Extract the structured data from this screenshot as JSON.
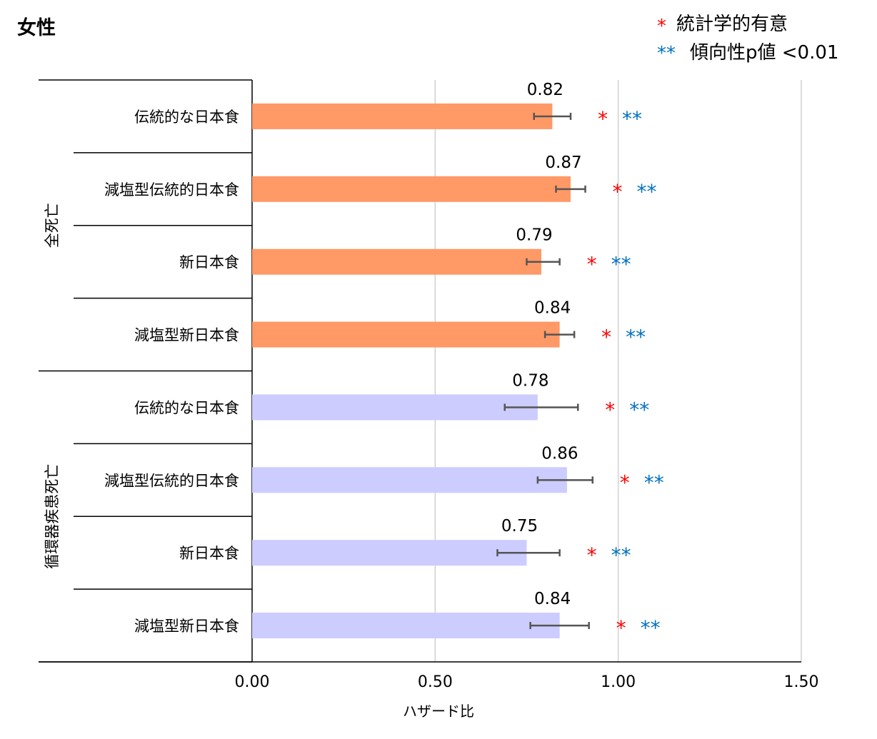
{
  "chart_data": {
    "type": "bar",
    "orientation": "horizontal",
    "title": "女性",
    "xlabel": "ハザード比",
    "xlim": [
      0,
      1.5
    ],
    "xticks": [
      "0.00",
      "0.50",
      "1.00",
      "1.50"
    ],
    "xtick_values": [
      0,
      0.5,
      1.0,
      1.5
    ],
    "grid": "vertical",
    "legend": {
      "placement": "top-right",
      "entries": [
        {
          "symbol": "*",
          "label": "統計学的有意",
          "color": "#FF0000"
        },
        {
          "symbol": "**",
          "label": "傾向性p値 <0.01",
          "color": "#0070C0"
        }
      ]
    },
    "groups": [
      {
        "name": "全死亡",
        "color": "#FF9966"
      },
      {
        "name": "循環器疾患死亡",
        "color": "#CCCCFF"
      }
    ],
    "rows": [
      {
        "group": 0,
        "label": "伝統的な日本食",
        "value": 0.82,
        "value_label": "0.82",
        "ci": [
          0.77,
          0.87
        ],
        "sig": "*",
        "trend": "**"
      },
      {
        "group": 0,
        "label": "減塩型伝統的日本食",
        "value": 0.87,
        "value_label": "0.87",
        "ci": [
          0.83,
          0.91
        ],
        "sig": "*",
        "trend": "**"
      },
      {
        "group": 0,
        "label": "新日本食",
        "value": 0.79,
        "value_label": "0.79",
        "ci": [
          0.75,
          0.84
        ],
        "sig": "*",
        "trend": "**"
      },
      {
        "group": 0,
        "label": "減塩型新日本食",
        "value": 0.84,
        "value_label": "0.84",
        "ci": [
          0.8,
          0.88
        ],
        "sig": "*",
        "trend": "**"
      },
      {
        "group": 1,
        "label": "伝統的な日本食",
        "value": 0.78,
        "value_label": "0.78",
        "ci": [
          0.69,
          0.89
        ],
        "sig": "*",
        "trend": "**"
      },
      {
        "group": 1,
        "label": "減塩型伝統的日本食",
        "value": 0.86,
        "value_label": "0.86",
        "ci": [
          0.78,
          0.93
        ],
        "sig": "*",
        "trend": "**"
      },
      {
        "group": 1,
        "label": "新日本食",
        "value": 0.75,
        "value_label": "0.75",
        "ci": [
          0.67,
          0.84
        ],
        "sig": "*",
        "trend": "**"
      },
      {
        "group": 1,
        "label": "減塩型新日本食",
        "value": 0.84,
        "value_label": "0.84",
        "ci": [
          0.76,
          0.92
        ],
        "sig": "*",
        "trend": "**"
      }
    ]
  }
}
